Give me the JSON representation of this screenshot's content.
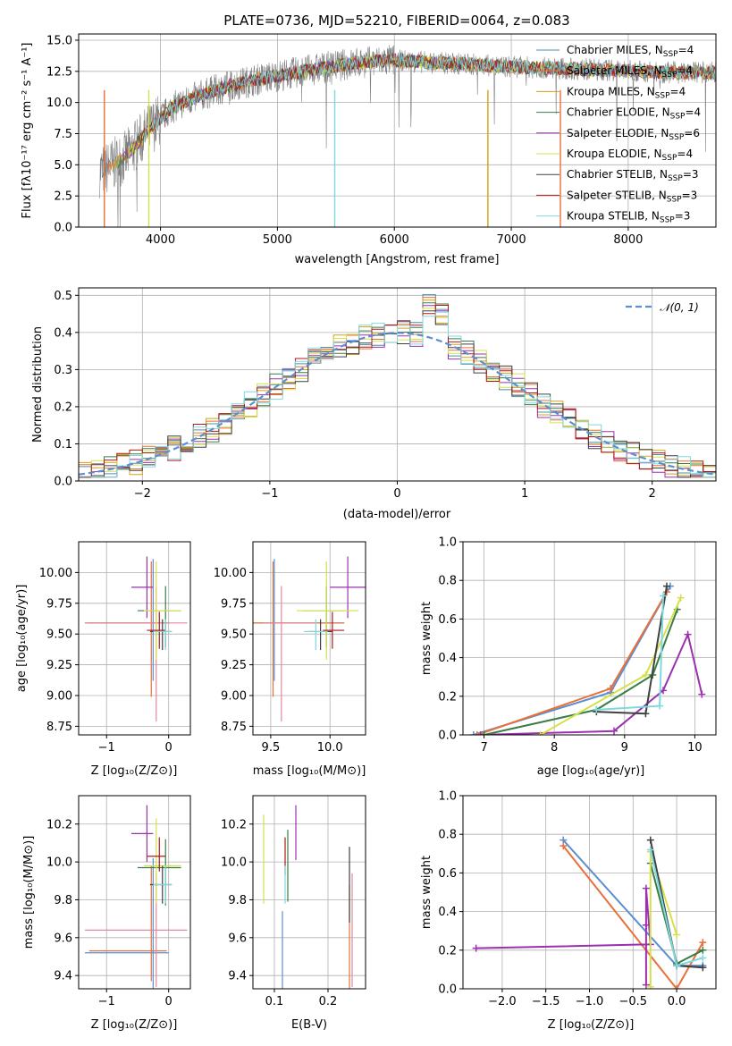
{
  "chart_data": [
    {
      "type": "line",
      "title": "PLATE=0736, MJD=52210, FIBERID=0064, z=0.083",
      "xlabel": "wavelength [Angstrom, rest frame]",
      "ylabel": "Flux [fλ10⁻¹⁷ erg cm⁻² s⁻¹ A⁻¹]",
      "xlim": [
        3300,
        8750
      ],
      "ylim": [
        0,
        15.5
      ],
      "xticks": [
        "4000",
        "5000",
        "6000",
        "7000",
        "8000"
      ],
      "yticks": [
        "0.0",
        "2.5",
        "5.0",
        "7.5",
        "10.0",
        "12.5",
        "15.0"
      ],
      "legend_position": "right",
      "observed_color": "#808080",
      "continuum_anchors": {
        "x": [
          3500,
          3700,
          3900,
          4100,
          4300,
          4500,
          4800,
          5100,
          5400,
          5700,
          6000,
          6300,
          6600,
          6900,
          7200,
          7500,
          7800,
          8100,
          8400
        ],
        "y": [
          4.5,
          5.6,
          7.8,
          9.6,
          10.4,
          11.1,
          11.8,
          12.3,
          12.8,
          13.2,
          13.4,
          13.2,
          13.1,
          12.9,
          12.8,
          12.7,
          12.6,
          12.5,
          12.4
        ]
      },
      "series": [
        {
          "name": "Chabrier MILES, N_SSP=4",
          "color": "#4a90a4"
        },
        {
          "name": "Salpeter MILES, N_SSP=4",
          "color": "#e8703a"
        },
        {
          "name": "Kroupa MILES, N_SSP=4",
          "color": "#d4a017"
        },
        {
          "name": "Chabrier ELODIE, N_SSP=4",
          "color": "#3a7d44"
        },
        {
          "name": "Salpeter ELODIE, N_SSP=6",
          "color": "#9b30b0"
        },
        {
          "name": "Kroupa ELODIE, N_SSP=4",
          "color": "#d6e04a"
        },
        {
          "name": "Chabrier STELIB, N_SSP=3",
          "color": "#404040"
        },
        {
          "name": "Salpeter STELIB, N_SSP=3",
          "color": "#b01818"
        },
        {
          "name": "Kroupa STELIB, N_SSP=3",
          "color": "#7fd7e0"
        }
      ]
    },
    {
      "type": "line",
      "xlabel": "(data-model)/error",
      "ylabel": "Normed distribution",
      "xlim": [
        -2.5,
        2.5
      ],
      "ylim": [
        0,
        0.52
      ],
      "xticks": [
        "−2",
        "−1",
        "0",
        "1",
        "2"
      ],
      "yticks": [
        "0.0",
        "0.1",
        "0.2",
        "0.3",
        "0.4",
        "0.5"
      ],
      "legend": "𝒩(0, 1)",
      "normal_color": "#5b8fd0",
      "bin_width": 0.1
    },
    {
      "type": "scatter",
      "xlabel": "Z [log₁₀(Z/Z⊙)]",
      "ylabel": "age  [log₁₀(age/yr)]",
      "xlim": [
        -1.45,
        0.35
      ],
      "ylim": [
        8.68,
        10.25
      ],
      "xticks": [
        -1,
        0
      ],
      "yticks": [
        8.75,
        9.0,
        9.25,
        9.5,
        9.75,
        10.0
      ]
    },
    {
      "type": "scatter",
      "xlabel": "mass [log₁₀(M/M⊙)]",
      "xlim": [
        9.35,
        10.3
      ],
      "ylim": [
        8.68,
        10.25
      ],
      "xticks": [
        9.5,
        10.0
      ],
      "yticks": [
        8.75,
        9.0,
        9.25,
        9.5,
        9.75,
        10.0
      ]
    },
    {
      "type": "line",
      "xlabel": "age  [log₁₀(age/yr)]",
      "ylabel": "mass weight",
      "xlim": [
        6.7,
        10.3
      ],
      "ylim": [
        0,
        1.0
      ],
      "xticks": [
        7,
        8,
        9,
        10
      ],
      "yticks": [
        0.0,
        0.2,
        0.4,
        0.6,
        0.8,
        1.0
      ]
    },
    {
      "type": "scatter",
      "xlabel": "Z [log₁₀(Z/Z⊙)]",
      "ylabel": "mass [log₁₀(M/M⊙)]",
      "xlim": [
        -1.45,
        0.35
      ],
      "ylim": [
        9.33,
        10.35
      ],
      "xticks": [
        -1,
        0
      ],
      "yticks": [
        9.4,
        9.6,
        9.8,
        10.0,
        10.2
      ]
    },
    {
      "type": "scatter",
      "xlabel": "E(B-V)",
      "xlim": [
        0.06,
        0.27
      ],
      "ylim": [
        9.33,
        10.35
      ],
      "xticks": [
        0.1,
        0.2
      ],
      "yticks": [
        9.4,
        9.6,
        9.8,
        10.0,
        10.2
      ]
    },
    {
      "type": "line",
      "xlabel": "Z [log₁₀(Z/Z⊙)]",
      "ylabel": "mass weight",
      "xlim": [
        -2.45,
        0.45
      ],
      "ylim": [
        0,
        1.0
      ],
      "xticks": [
        -2.0,
        -1.5,
        -1.0,
        -0.5,
        0.0
      ],
      "yticks": [
        0.0,
        0.2,
        0.4,
        0.6,
        0.8,
        1.0
      ]
    }
  ],
  "fits": [
    {
      "color": "#5b8fd0",
      "Z": -0.25,
      "Zerr": [
        1.1,
        0.25
      ],
      "age": 9.59,
      "ageerr": [
        0.47,
        0.52
      ],
      "mass": 9.53,
      "masserr": [
        0.2,
        0.59
      ],
      "mass2": 9.52,
      "masserr2": [
        0.2,
        0.5
      ],
      "ebv": 0.115,
      "ebverr": [
        0.24,
        0.22
      ]
    },
    {
      "color": "#e8703a",
      "Z": -0.28,
      "Zerr": [
        1.0,
        0.25
      ],
      "age": 9.59,
      "ageerr": [
        0.6,
        0.5
      ],
      "mass": 9.52,
      "masserr": [
        0.2,
        0.6
      ],
      "mass2": 9.53,
      "masserr2": [
        0.16,
        0.45
      ],
      "ebv": 0.24,
      "ebverr": [
        0.3,
        0.35
      ]
    },
    {
      "color": "#e0899a",
      "Z": -0.2,
      "Zerr": [
        1.15,
        0.5
      ],
      "age": 9.59,
      "ageerr": [
        0.8,
        0.3
      ],
      "mass": 9.59,
      "masserr": [
        0.15,
        0.3
      ],
      "mass2": 9.64,
      "masserr2": [
        0.3,
        0.3
      ],
      "ebv": 0.245,
      "ebverr": [
        0.3,
        0.3
      ]
    },
    {
      "color": "#9b30b0",
      "Z": -0.35,
      "Zerr": [
        0.25,
        0.1
      ],
      "age": 9.88,
      "ageerr": [
        0.25,
        0.25
      ],
      "mass": 10.15,
      "masserr": [
        0.15,
        0.15
      ],
      "mass2": 10.15,
      "masserr2": [
        0.15,
        0.15
      ],
      "ebv": 0.14,
      "ebverr": [
        0.14,
        0.15
      ]
    },
    {
      "color": "#3a7d44",
      "Z": -0.05,
      "Zerr": [
        0.45,
        0.25
      ],
      "age": 9.69,
      "ageerr": [
        0.3,
        0.2
      ],
      "mass": 9.97,
      "masserr": [
        0.2,
        0.15
      ],
      "mass2": 9.97,
      "masserr2": [
        0.2,
        0.15
      ],
      "ebv": 0.125,
      "ebverr": [
        0.18,
        0.2
      ]
    },
    {
      "color": "#d6e04a",
      "Z": -0.2,
      "Zerr": [
        0.2,
        0.4
      ],
      "age": 9.69,
      "ageerr": [
        0.4,
        0.4
      ],
      "mass": 9.97,
      "masserr": [
        0.25,
        0.27
      ],
      "mass2": 9.98,
      "masserr2": [
        0.2,
        0.25
      ],
      "ebv": 0.08,
      "ebverr": [
        0.2,
        0.27
      ]
    },
    {
      "color": "#404040",
      "Z": -0.1,
      "Zerr": [
        0.2,
        0.15
      ],
      "age": 9.52,
      "ageerr": [
        0.15,
        0.1
      ],
      "mass": 9.92,
      "masserr": [
        0.1,
        0.1
      ],
      "mass2": 9.88,
      "masserr2": [
        0.1,
        0.1
      ],
      "ebv": 0.24,
      "ebverr": [
        0.2,
        0.2
      ]
    },
    {
      "color": "#b01818",
      "Z": -0.15,
      "Zerr": [
        0.2,
        0.1
      ],
      "age": 9.53,
      "ageerr": [
        0.15,
        0.15
      ],
      "mass": 10.02,
      "masserr": [
        0.08,
        0.1
      ],
      "mass2": 10.03,
      "masserr2": [
        0.08,
        0.1
      ],
      "ebv": 0.12,
      "ebverr": [
        0.1,
        0.1
      ]
    },
    {
      "color": "#7fd7e0",
      "Z": -0.05,
      "Zerr": [
        0.2,
        0.1
      ],
      "age": 9.52,
      "ageerr": [
        0.15,
        0.1
      ],
      "mass": 9.88,
      "masserr": [
        0.1,
        0.1
      ],
      "mass2": 9.88,
      "masserr2": [
        0.1,
        0.1
      ],
      "ebv": 0.12,
      "ebverr": [
        0.1,
        0.1
      ]
    }
  ],
  "sfh": [
    {
      "color": "#5b8fd0",
      "age": [
        6.85,
        8.8,
        9.65
      ],
      "w": [
        0.0,
        0.22,
        0.77
      ],
      "Z": [
        -1.3,
        0.0,
        0.3
      ],
      "wz": [
        0.77,
        0.12,
        0.12
      ]
    },
    {
      "color": "#e8703a",
      "age": [
        6.9,
        8.8,
        9.6
      ],
      "w": [
        0.0,
        0.24,
        0.74
      ],
      "Z": [
        -1.3,
        0.0,
        0.3
      ],
      "wz": [
        0.74,
        0.0,
        0.24
      ]
    },
    {
      "color": "#9b30b0",
      "age": [
        6.95,
        8.85,
        9.55,
        9.9,
        10.1
      ],
      "w": [
        0.0,
        0.02,
        0.23,
        0.52,
        0.21
      ],
      "Z": [
        -2.3,
        -0.3,
        -0.35,
        -0.35,
        -0.35
      ],
      "wz": [
        0.21,
        0.23,
        0.52,
        0.33,
        0.02
      ]
    },
    {
      "color": "#3a7d44",
      "age": [
        7.0,
        8.6,
        9.4,
        9.75
      ],
      "w": [
        0.0,
        0.13,
        0.31,
        0.65
      ],
      "Z": [
        -0.3,
        0.0,
        0.3
      ],
      "wz": [
        0.65,
        0.13,
        0.2
      ]
    },
    {
      "color": "#d6e04a",
      "age": [
        7.8,
        9.3,
        9.8
      ],
      "w": [
        0.0,
        0.31,
        0.71
      ],
      "Z": [
        -0.3,
        -0.3,
        0.0
      ],
      "wz": [
        0.01,
        0.71,
        0.28
      ]
    },
    {
      "color": "#404040",
      "age": [
        8.6,
        9.3,
        9.6
      ],
      "w": [
        0.12,
        0.11,
        0.77
      ],
      "Z": [
        -0.3,
        0.0,
        0.3
      ],
      "wz": [
        0.77,
        0.12,
        0.11
      ]
    },
    {
      "color": "#7fd7e0",
      "age": [
        8.6,
        9.5,
        9.55
      ],
      "w": [
        0.13,
        0.15,
        0.72
      ],
      "Z": [
        -0.3,
        0.0,
        0.3
      ],
      "wz": [
        0.72,
        0.12,
        0.16
      ]
    }
  ]
}
